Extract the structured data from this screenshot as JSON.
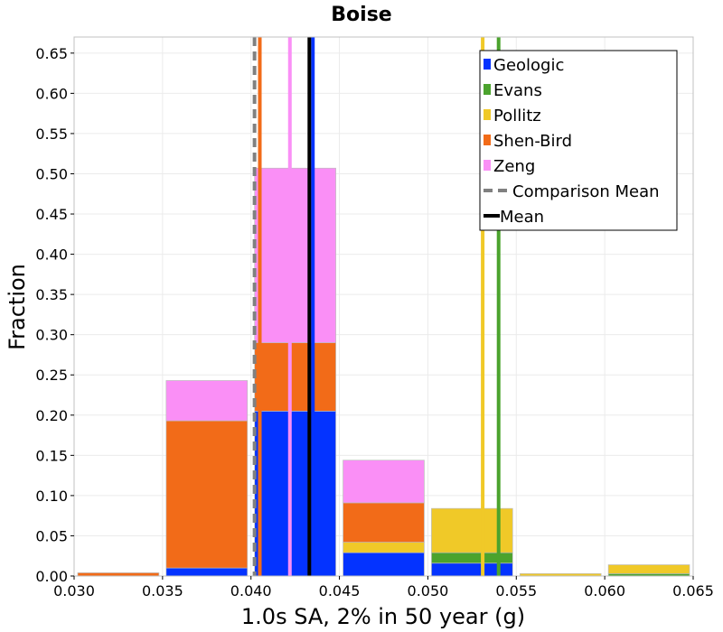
{
  "chart_data": {
    "type": "bar",
    "stacked": true,
    "title": "Boise",
    "xlabel": "1.0s SA, 2% in 50 year (g)",
    "ylabel": "Fraction",
    "xlim": [
      0.03,
      0.065
    ],
    "ylim": [
      0.0,
      0.67
    ],
    "xticks": [
      "0.030",
      "0.035",
      "0.040",
      "0.045",
      "0.050",
      "0.055",
      "0.060",
      "0.065"
    ],
    "yticks": [
      "0.00",
      "0.05",
      "0.10",
      "0.15",
      "0.20",
      "0.25",
      "0.30",
      "0.35",
      "0.40",
      "0.45",
      "0.50",
      "0.55",
      "0.60",
      "0.65"
    ],
    "bins": [
      [
        0.03,
        0.035
      ],
      [
        0.035,
        0.04
      ],
      [
        0.04,
        0.045
      ],
      [
        0.045,
        0.05
      ],
      [
        0.05,
        0.055
      ],
      [
        0.055,
        0.06
      ],
      [
        0.06,
        0.065
      ]
    ],
    "grid": true,
    "legend_position": "top-right",
    "series": [
      {
        "name": "Geologic",
        "color": "#0433ff",
        "values": [
          0.0,
          0.01,
          0.205,
          0.029,
          0.016,
          0.0,
          0.0
        ]
      },
      {
        "name": "Evans",
        "color": "#4ba32d",
        "values": [
          0.0,
          0.0,
          0.0,
          0.0,
          0.013,
          0.0,
          0.003
        ]
      },
      {
        "name": "Pollitz",
        "color": "#f0c928",
        "values": [
          0.0,
          0.0,
          0.0,
          0.013,
          0.055,
          0.003,
          0.011
        ]
      },
      {
        "name": "Shen-Bird",
        "color": "#f26b18",
        "values": [
          0.004,
          0.183,
          0.085,
          0.049,
          0.0,
          0.0,
          0.0
        ]
      },
      {
        "name": "Zeng",
        "color": "#fa8ff6",
        "values": [
          0.0,
          0.05,
          0.217,
          0.053,
          0.0,
          0.0,
          0.0
        ]
      }
    ],
    "vertical_lines": [
      {
        "series": "Geologic",
        "x": 0.0435,
        "color": "#0433ff"
      },
      {
        "series": "Evans",
        "x": 0.054,
        "color": "#4ba32d"
      },
      {
        "series": "Pollitz",
        "x": 0.0531,
        "color": "#f0c928"
      },
      {
        "series": "Shen-Bird",
        "x": 0.0405,
        "color": "#f26b18"
      },
      {
        "series": "Zeng",
        "x": 0.0422,
        "color": "#fa8ff6"
      },
      {
        "series": "Comparison Mean",
        "x": 0.0402,
        "color": "#808080",
        "dashed": true
      },
      {
        "series": "Mean",
        "x": 0.0433,
        "color": "#000000"
      }
    ],
    "legend": [
      {
        "label": "Geologic",
        "color": "#0433ff",
        "kind": "swatch"
      },
      {
        "label": "Evans",
        "color": "#4ba32d",
        "kind": "swatch"
      },
      {
        "label": "Pollitz",
        "color": "#f0c928",
        "kind": "swatch"
      },
      {
        "label": "Shen-Bird",
        "color": "#f26b18",
        "kind": "swatch"
      },
      {
        "label": "Zeng",
        "color": "#fa8ff6",
        "kind": "swatch"
      },
      {
        "label": "Comparison Mean",
        "color": "#808080",
        "kind": "dashed-line"
      },
      {
        "label": "Mean",
        "color": "#000000",
        "kind": "line"
      }
    ]
  }
}
